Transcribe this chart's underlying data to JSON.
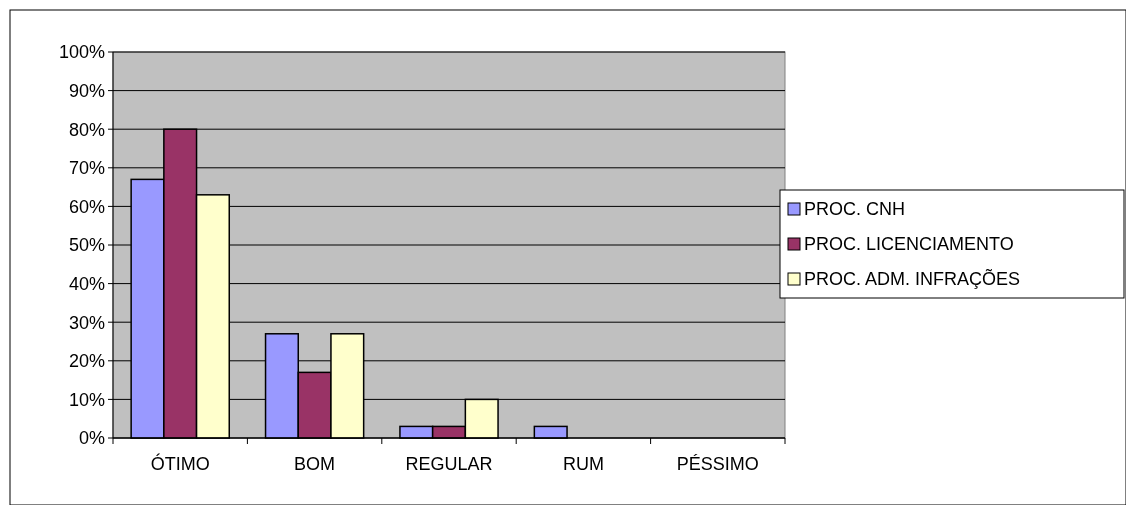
{
  "chart_data": {
    "type": "bar",
    "categories": [
      "ÓTIMO",
      "BOM",
      "REGULAR",
      "RUM",
      "PÉSSIMO"
    ],
    "series": [
      {
        "name": "PROC. CNH",
        "color": "#9999ff",
        "values": [
          67,
          27,
          3,
          3,
          0
        ]
      },
      {
        "name": "PROC. LICENCIAMENTO",
        "color": "#993366",
        "values": [
          80,
          17,
          3,
          0,
          0
        ]
      },
      {
        "name": "PROC. ADM. INFRAÇÕES",
        "color": "#ffffcc",
        "values": [
          63,
          27,
          10,
          0,
          0
        ]
      }
    ],
    "ylim": [
      0,
      100
    ],
    "yticks": [
      {
        "value": 0,
        "label": "0%"
      },
      {
        "value": 10,
        "label": "10%"
      },
      {
        "value": 20,
        "label": "20%"
      },
      {
        "value": 30,
        "label": "30%"
      },
      {
        "value": 40,
        "label": "40%"
      },
      {
        "value": 50,
        "label": "50%"
      },
      {
        "value": 60,
        "label": "60%"
      },
      {
        "value": 70,
        "label": "70%"
      },
      {
        "value": 80,
        "label": "80%"
      },
      {
        "value": 90,
        "label": "90%"
      },
      {
        "value": 100,
        "label": "100%"
      }
    ],
    "grid": "y",
    "legend": "right"
  }
}
